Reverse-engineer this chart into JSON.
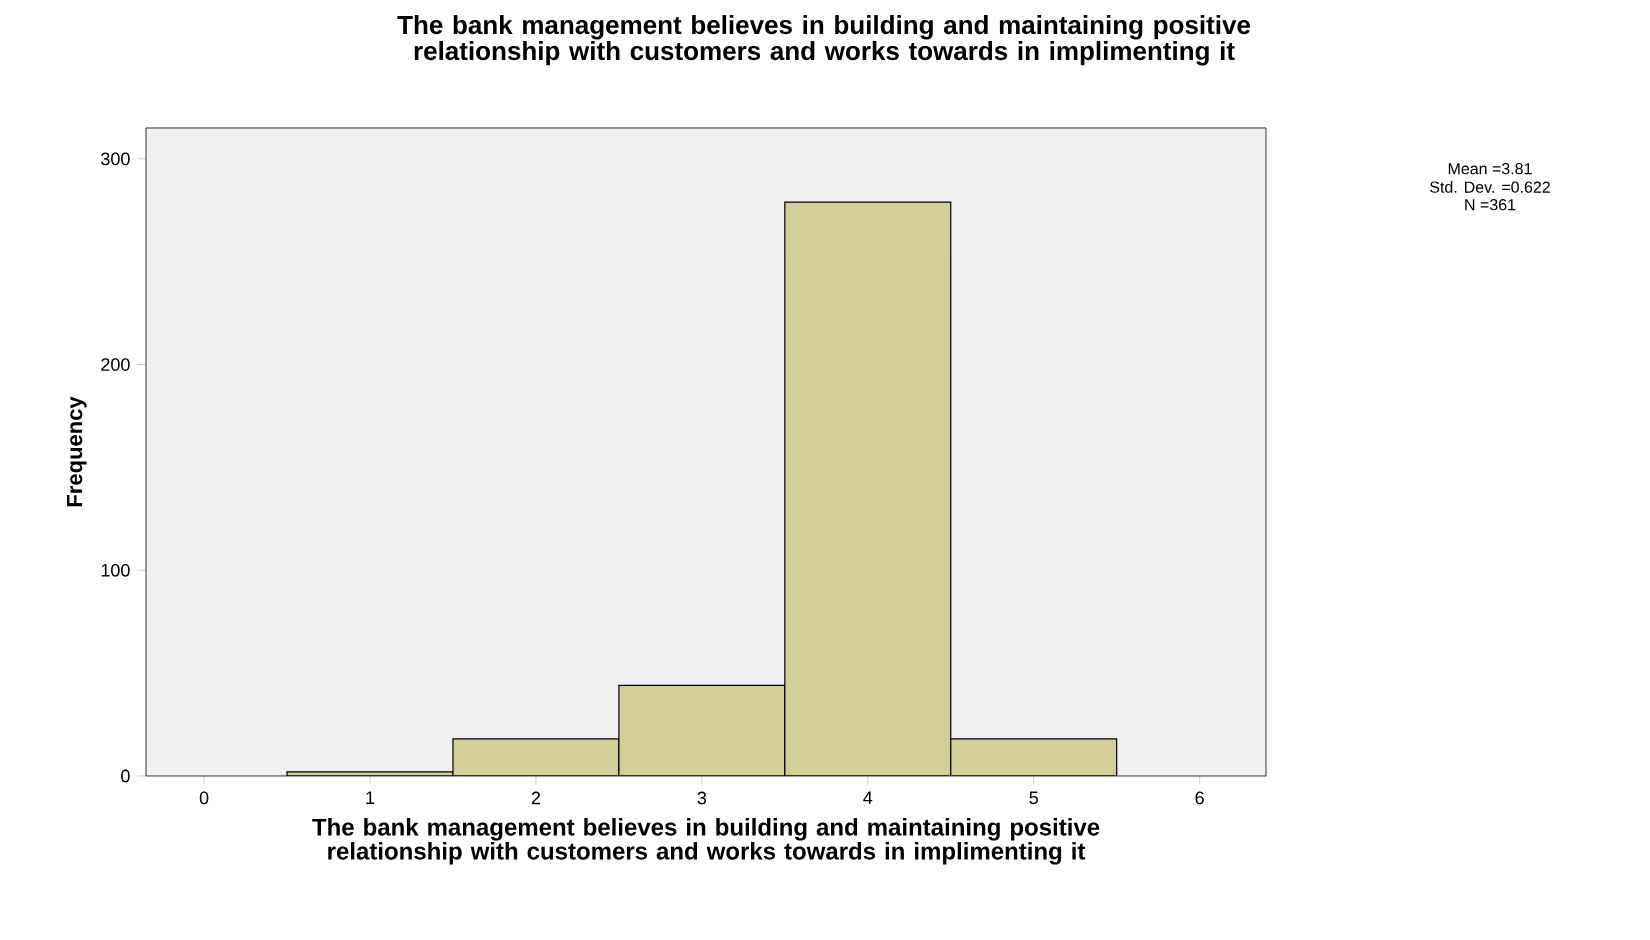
{
  "chart_data": {
    "type": "histogram",
    "title": "The bank management believes in building and maintaining positive relationship with customers and works towards in implimenting it",
    "xlabel": "The bank management believes in building and maintaining positive relationship with customers and works towards in implimenting it",
    "ylabel": "Frequency",
    "bins": [
      0.5,
      1.5,
      2.5,
      3.5,
      4.5,
      5.5
    ],
    "values": [
      2,
      18,
      44,
      279,
      18
    ],
    "color": "#d3ce97",
    "xlim": [
      -0.35,
      6.4
    ],
    "xticks": [
      0,
      1,
      2,
      3,
      4,
      5,
      6
    ],
    "ylim": [
      0,
      315
    ],
    "yticks": [
      0,
      100,
      200,
      300
    ],
    "grid": false,
    "annotations": [
      "Mean =3.81",
      "Std. Dev. =0.622",
      "N =361"
    ]
  }
}
